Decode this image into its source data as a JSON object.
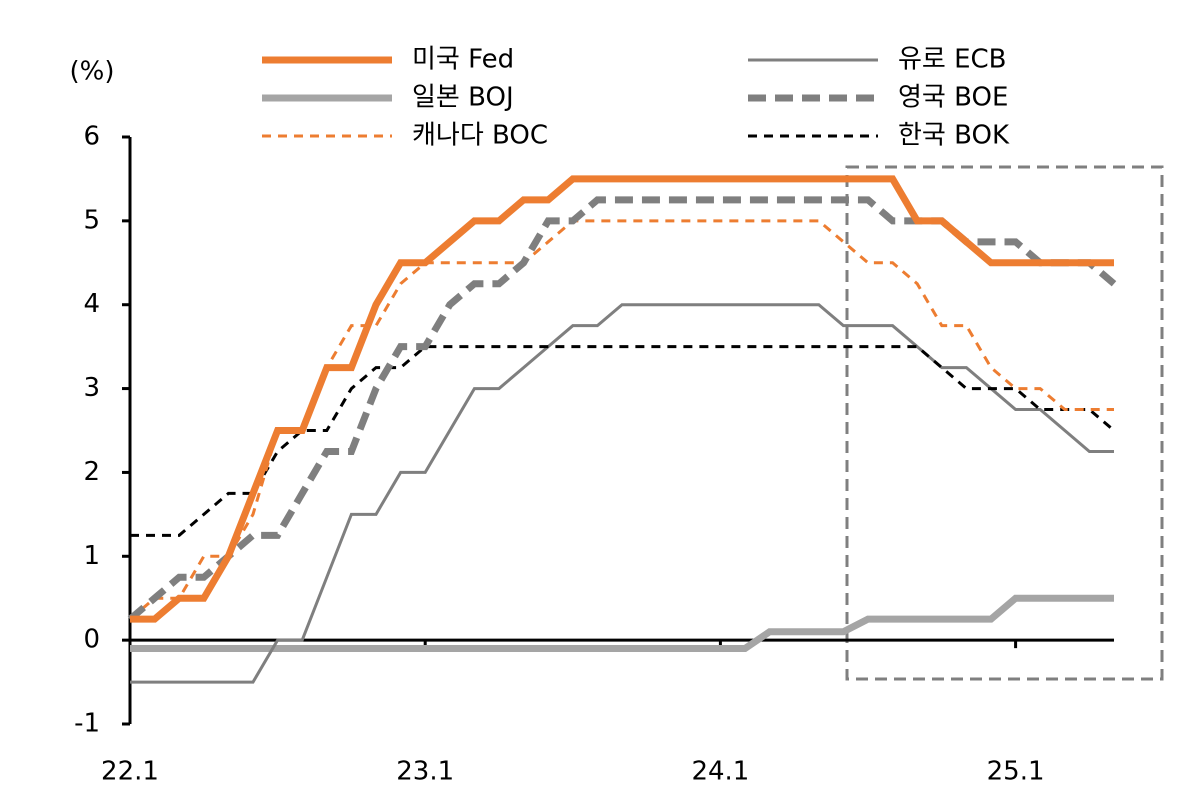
{
  "chart_data": {
    "type": "line",
    "y_label": "(%)",
    "categories": [
      "22.1",
      null,
      null,
      null,
      null,
      null,
      null,
      null,
      null,
      null,
      null,
      null,
      "23.1",
      null,
      null,
      null,
      null,
      null,
      null,
      null,
      null,
      null,
      null,
      null,
      "24.1",
      null,
      null,
      null,
      null,
      null,
      null,
      null,
      null,
      null,
      null,
      null,
      "25.1",
      null,
      null,
      null,
      null
    ],
    "ylim": [
      -1,
      6
    ],
    "yticks": [
      -1,
      0,
      1,
      2,
      3,
      4,
      5,
      6
    ],
    "series": [
      {
        "name": "미국 Fed",
        "color": "#ed7d31",
        "style": "solid",
        "weight": "thick",
        "values": [
          0.25,
          0.25,
          0.5,
          0.5,
          1.0,
          1.75,
          2.5,
          2.5,
          3.25,
          3.25,
          4.0,
          4.5,
          4.5,
          4.75,
          5.0,
          5.0,
          5.25,
          5.25,
          5.5,
          5.5,
          5.5,
          5.5,
          5.5,
          5.5,
          5.5,
          5.5,
          5.5,
          5.5,
          5.5,
          5.5,
          5.5,
          5.5,
          5.0,
          5.0,
          4.75,
          4.5,
          4.5,
          4.5,
          4.5,
          4.5,
          4.5
        ]
      },
      {
        "name": "유로 ECB",
        "color": "#7f7f7f",
        "style": "solid",
        "weight": "thin",
        "values": [
          -0.5,
          -0.5,
          -0.5,
          -0.5,
          -0.5,
          -0.5,
          0,
          0,
          0.75,
          1.5,
          1.5,
          2.0,
          2.0,
          2.5,
          3.0,
          3.0,
          3.25,
          3.5,
          3.75,
          3.75,
          4.0,
          4.0,
          4.0,
          4.0,
          4.0,
          4.0,
          4.0,
          4.0,
          4.0,
          3.75,
          3.75,
          3.75,
          3.5,
          3.25,
          3.25,
          3.0,
          2.75,
          2.75,
          2.5,
          2.25,
          2.25
        ]
      },
      {
        "name": "일본 BOJ",
        "color": "#a5a5a5",
        "style": "solid",
        "weight": "thick",
        "values": [
          -0.1,
          -0.1,
          -0.1,
          -0.1,
          -0.1,
          -0.1,
          -0.1,
          -0.1,
          -0.1,
          -0.1,
          -0.1,
          -0.1,
          -0.1,
          -0.1,
          -0.1,
          -0.1,
          -0.1,
          -0.1,
          -0.1,
          -0.1,
          -0.1,
          -0.1,
          -0.1,
          -0.1,
          -0.1,
          -0.1,
          0.1,
          0.1,
          0.1,
          0.1,
          0.25,
          0.25,
          0.25,
          0.25,
          0.25,
          0.25,
          0.5,
          0.5,
          0.5,
          0.5,
          0.5
        ]
      },
      {
        "name": "영국 BOE",
        "color": "#7f7f7f",
        "style": "dashed",
        "weight": "thick",
        "values": [
          0.25,
          0.5,
          0.75,
          0.75,
          1.0,
          1.25,
          1.25,
          1.75,
          2.25,
          2.25,
          3.0,
          3.5,
          3.5,
          4.0,
          4.25,
          4.25,
          4.5,
          5.0,
          5.0,
          5.25,
          5.25,
          5.25,
          5.25,
          5.25,
          5.25,
          5.25,
          5.25,
          5.25,
          5.25,
          5.25,
          5.25,
          5.0,
          5.0,
          5.0,
          4.75,
          4.75,
          4.75,
          4.5,
          4.5,
          4.5,
          4.25
        ]
      },
      {
        "name": "캐나다 BOC",
        "color": "#ed7d31",
        "style": "dashed",
        "weight": "thin",
        "values": [
          0.25,
          0.5,
          0.5,
          1.0,
          1.0,
          1.5,
          2.5,
          2.5,
          3.25,
          3.75,
          3.75,
          4.25,
          4.5,
          4.5,
          4.5,
          4.5,
          4.5,
          4.75,
          5.0,
          5.0,
          5.0,
          5.0,
          5.0,
          5.0,
          5.0,
          5.0,
          5.0,
          5.0,
          5.0,
          4.75,
          4.5,
          4.5,
          4.25,
          3.75,
          3.75,
          3.25,
          3.0,
          3.0,
          2.75,
          2.75,
          2.75
        ]
      },
      {
        "name": "한국 BOK",
        "color": "#000000",
        "style": "dashed",
        "weight": "thin",
        "values": [
          1.25,
          1.25,
          1.25,
          1.5,
          1.75,
          1.75,
          2.25,
          2.5,
          2.5,
          3.0,
          3.25,
          3.25,
          3.5,
          3.5,
          3.5,
          3.5,
          3.5,
          3.5,
          3.5,
          3.5,
          3.5,
          3.5,
          3.5,
          3.5,
          3.5,
          3.5,
          3.5,
          3.5,
          3.5,
          3.5,
          3.5,
          3.5,
          3.5,
          3.25,
          3.0,
          3.0,
          3.0,
          2.75,
          2.75,
          2.75,
          2.5
        ]
      }
    ]
  }
}
